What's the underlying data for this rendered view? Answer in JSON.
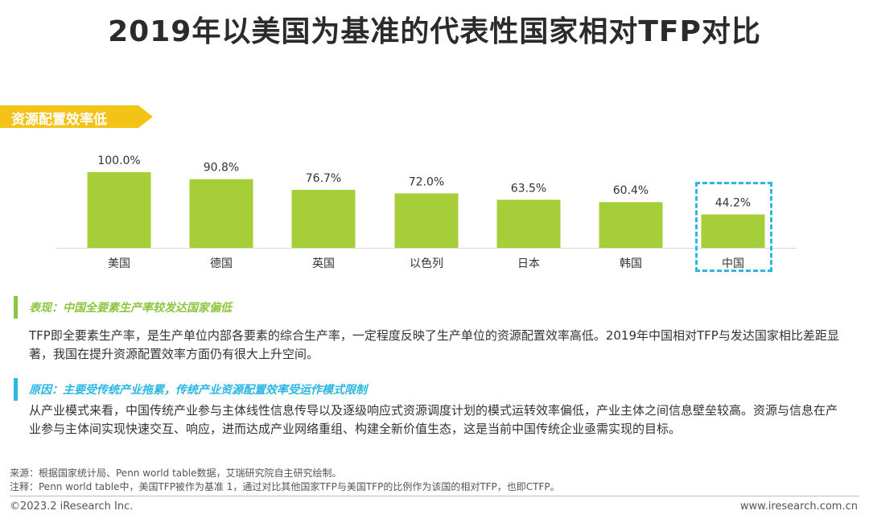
{
  "page": {
    "title": "2019年以美国为基准的代表性国家相对TFP对比",
    "section_tag": "资源配置效率低",
    "colors": {
      "bar": "#a6ce39",
      "tag": "#f3c317",
      "green_bar": "#8cc63f",
      "blue_bar": "#2bb6e3",
      "highlight": "#2bb6e3"
    }
  },
  "chart_data": {
    "type": "bar",
    "categories": [
      "美国",
      "德国",
      "英国",
      "以色列",
      "日本",
      "韩国",
      "中国"
    ],
    "values": [
      100.0,
      90.8,
      76.7,
      72.0,
      63.5,
      60.4,
      44.2
    ],
    "value_labels": [
      "100.0%",
      "90.8%",
      "76.7%",
      "72.0%",
      "63.5%",
      "60.4%",
      "44.2%"
    ],
    "ylim": [
      0,
      100
    ],
    "grid": false,
    "highlighted_category": "中国"
  },
  "notes": {
    "performance": {
      "heading": "表现：中国全要素生产率较发达国家偏低",
      "body": "TFP即全要素生产率，是生产单位内部各要素的综合生产率，一定程度反映了生产单位的资源配置效率高低。2019年中国相对TFP与发达国家相比差距显著，我国在提升资源配置效率方面仍有很大上升空间。"
    },
    "reason": {
      "heading": "原因：主要受传统产业拖累，传统产业资源配置效率受运作模式限制",
      "body": "从产业模式来看，中国传统产业参与主体线性信息传导以及逐级响应式资源调度计划的模式运转效率偏低，产业主体之间信息壁垒较高。资源与信息在产业参与主体间实现快速交互、响应，进而达成产业网络重组、构建全新价值生态，这是当前中国传统企业亟需实现的目标。"
    }
  },
  "footnotes": {
    "source": "来源：根据国家统计局、Penn world table数据，艾瑞研究院自主研究绘制。",
    "note": "注释：Penn world table中，美国TFP被作为基准 1，通过对比其他国家TFP与美国TFP的比例作为该国的相对TFP，也即CTFP。"
  },
  "footer": {
    "copyright": "©2023.2 iResearch Inc.",
    "website": "www.iresearch.com.cn"
  }
}
